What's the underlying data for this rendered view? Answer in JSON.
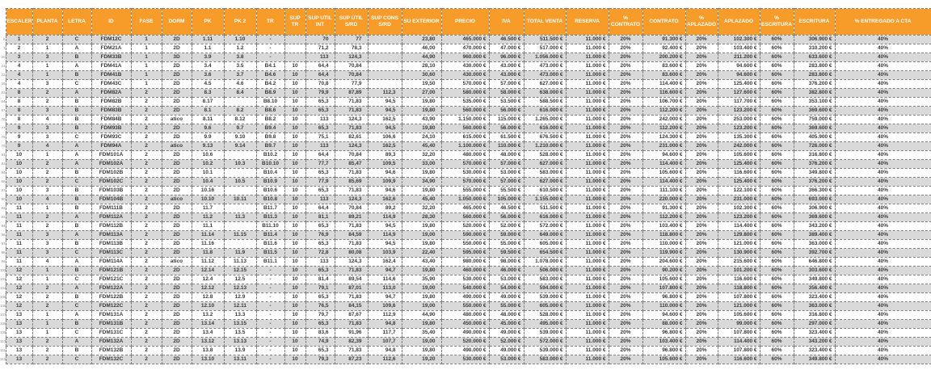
{
  "table": {
    "colors": {
      "header_bg": "#F79C28",
      "header_text": "#FFFFFF",
      "row_alt": "#D9D9D9",
      "border": "#7F7F7F",
      "cell_text": "#3A3A3A",
      "rownum_text": "#8A8A8A"
    },
    "columns": [
      {
        "key": "escalera",
        "label": "ESCALERA"
      },
      {
        "key": "planta",
        "label": "PLANTA"
      },
      {
        "key": "letra",
        "label": "LETRA"
      },
      {
        "key": "id",
        "label": "ID"
      },
      {
        "key": "fase",
        "label": "FASE"
      },
      {
        "key": "dorm",
        "label": "DORM"
      },
      {
        "key": "pk",
        "label": "PK"
      },
      {
        "key": "pk2",
        "label": "PK 2"
      },
      {
        "key": "tr",
        "label": "TR"
      },
      {
        "key": "sup_tr",
        "label": "SUP TR"
      },
      {
        "key": "sup_util_int",
        "label": "SUP UTIL INT"
      },
      {
        "key": "sup_util_srd",
        "label": "SUP ÚTIL S/RD"
      },
      {
        "key": "sup_cons_srd",
        "label": "SUP CONS S/RD"
      },
      {
        "key": "su_exterior",
        "label": "SU EXTERIOR"
      },
      {
        "key": "precio",
        "label": "PRECIO"
      },
      {
        "key": "iva",
        "label": "IVA"
      },
      {
        "key": "total_venta",
        "label": "TOTAL VENTA"
      },
      {
        "key": "reserva",
        "label": "RESERVA"
      },
      {
        "key": "pct_contrato",
        "label": "% CONTRATO"
      },
      {
        "key": "contrato",
        "label": "CONTRATO"
      },
      {
        "key": "pct_aplazado",
        "label": "% APLAZADO"
      },
      {
        "key": "aplazado",
        "label": "APLAZADO"
      },
      {
        "key": "pct_escritura",
        "label": "% ESCRITURA"
      },
      {
        "key": "escritura",
        "label": "ESCRITURA"
      },
      {
        "key": "pct_entregado_cta",
        "label": "% ENTREGADO A CTA"
      }
    ],
    "row_numbers": [
      6,
      7,
      20,
      21,
      22,
      28,
      63,
      64,
      67,
      76,
      77,
      78,
      79,
      81,
      83,
      84,
      86,
      87,
      90,
      92,
      93,
      94,
      96,
      97,
      98,
      99,
      102,
      103,
      104,
      105,
      106,
      107,
      108,
      109,
      110,
      111,
      112
    ],
    "rows": [
      [
        "1",
        "2",
        "C",
        "FDM12C",
        "1",
        "2D",
        "1.11",
        "1.10",
        "-",
        "",
        "70",
        "77",
        "",
        "23,80",
        "465.000 €",
        "46.500 €",
        "511.500 €",
        "11.000 €",
        "20%",
        "91.300 €",
        "20%",
        "102.300 €",
        "60%",
        "306.900 €",
        "40%"
      ],
      [
        "2",
        "1",
        "A",
        "FDM21A",
        "1",
        "2D",
        "1.1",
        "1.2",
        "-",
        "",
        "71,2",
        "78,3",
        "",
        "46,00",
        "470.000 €",
        "47.000 €",
        "517.000 €",
        "11.000 €",
        "20%",
        "92.400 €",
        "20%",
        "103.400 €",
        "60%",
        "310.200 €",
        "40%"
      ],
      [
        "3",
        "3",
        "B",
        "FDM33B",
        "1",
        "3D",
        "3.9",
        "3.8",
        "-",
        "",
        "113",
        "124,3",
        "",
        "44,90",
        "960.000 €",
        "96.000 €",
        "1.056.000 €",
        "11.000 €",
        "20%",
        "200.200 €",
        "20%",
        "211.200 €",
        "60%",
        "633.600 €",
        "40%"
      ],
      [
        "4",
        "1",
        "A",
        "FDM41A",
        "1",
        "2D",
        "3.4",
        "3.5",
        "B4.1",
        "10",
        "64,4",
        "70,84",
        "",
        "28,10",
        "430.000 €",
        "43.000 €",
        "473.000 €",
        "11.000 €",
        "20%",
        "83.600 €",
        "20%",
        "94.600 €",
        "60%",
        "283.800 €",
        "40%"
      ],
      [
        "4",
        "1",
        "B",
        "FDM41B",
        "1",
        "2D",
        "3.6",
        "3.7",
        "B4.6",
        "10",
        "64,4",
        "70,84",
        "",
        "30,60",
        "430.000 €",
        "43.000 €",
        "473.000 €",
        "11.000 €",
        "20%",
        "83.600 €",
        "20%",
        "94.600 €",
        "60%",
        "283.800 €",
        "40%"
      ],
      [
        "4",
        "3",
        "C",
        "FDM43C",
        "1",
        "2D",
        "4.5",
        "4.6",
        "B4.2",
        "10",
        "70,8",
        "77,9",
        "",
        "19,50",
        "570.000 €",
        "57.000 €",
        "627.000 €",
        "11.000 €",
        "20%",
        "114.400 €",
        "20%",
        "125.400 €",
        "60%",
        "376.200 €",
        "40%"
      ],
      [
        "8",
        "2",
        "A",
        "FDM82A",
        "2",
        "2D",
        "8.3",
        "8.4",
        "B8.9",
        "10",
        "79,9",
        "87,89",
        "112,3",
        "27,00",
        "580.000 €",
        "58.000 €",
        "638.000 €",
        "11.000 €",
        "20%",
        "116.600 €",
        "20%",
        "127.600 €",
        "60%",
        "382.800 €",
        "40%"
      ],
      [
        "8",
        "2",
        "B",
        "FDM82B",
        "2",
        "2D",
        "8.17",
        "",
        "B8.10",
        "10",
        "65,3",
        "71,83",
        "94,5",
        "19,80",
        "535.000 €",
        "53.500 €",
        "588.500 €",
        "11.000 €",
        "20%",
        "106.700 €",
        "20%",
        "117.700 €",
        "60%",
        "353.100 €",
        "40%"
      ],
      [
        "8",
        "3",
        "B",
        "FDM83B",
        "2",
        "2D",
        "8.1",
        "8.2",
        "B8.6",
        "10",
        "65,3",
        "71,83",
        "94,5",
        "19,80",
        "560.000 €",
        "56.000 €",
        "616.000 €",
        "11.000 €",
        "20%",
        "112.200 €",
        "20%",
        "123.200 €",
        "60%",
        "369.600 €",
        "40%"
      ],
      [
        "8",
        "4",
        "B",
        "FDM84B",
        "2",
        "atico",
        "8.11",
        "8.12",
        "B8.2",
        "10",
        "113",
        "124,3",
        "162,5",
        "43,90",
        "1.150.000 €",
        "115.000 €",
        "1.265.000 €",
        "11.000 €",
        "20%",
        "242.000 €",
        "20%",
        "253.000 €",
        "60%",
        "759.000 €",
        "40%"
      ],
      [
        "9",
        "3",
        "B",
        "FDM93B",
        "2",
        "2D",
        "9.6",
        "9.7",
        "B9.4",
        "10",
        "65,3",
        "71,83",
        "94,5",
        "19,80",
        "560.000 €",
        "56.000 €",
        "616.000 €",
        "11.000 €",
        "20%",
        "112.200 €",
        "20%",
        "123.200 €",
        "60%",
        "369.600 €",
        "40%"
      ],
      [
        "9",
        "3",
        "C",
        "FDM93C",
        "2",
        "2D",
        "9.9",
        "9.10",
        "B9.8",
        "10",
        "75,1",
        "82,61",
        "106,6",
        "24,10",
        "615.000 €",
        "61.500 €",
        "676.500 €",
        "11.000 €",
        "20%",
        "124.300 €",
        "20%",
        "135.300 €",
        "60%",
        "405.900 €",
        "40%"
      ],
      [
        "9",
        "4",
        "A",
        "FDM94A",
        "2",
        "atico",
        "9.13",
        "9.14",
        "B9.7",
        "10",
        "113",
        "124,3",
        "162,5",
        "45,40",
        "1.100.000 €",
        "110.000 €",
        "1.210.000 €",
        "11.000 €",
        "20%",
        "231.000 €",
        "20%",
        "242.000 €",
        "60%",
        "726.000 €",
        "40%"
      ],
      [
        "10",
        "1",
        "A",
        "FDM101A",
        "2",
        "2D",
        "10.6",
        "",
        "B10.2",
        "10",
        "64,4",
        "70,84",
        "89,3",
        "32,20",
        "480.000 €",
        "48.000 €",
        "528.000 €",
        "11.000 €",
        "20%",
        "94.600 €",
        "20%",
        "105.600 €",
        "60%",
        "316.800 €",
        "40%"
      ],
      [
        "10",
        "2",
        "A",
        "FDM102A",
        "2",
        "2D",
        "10.2",
        "10.3",
        "B10.10",
        "10",
        "77,7",
        "85,47",
        "109,5",
        "33,00",
        "570.000 €",
        "57.000 €",
        "627.000 €",
        "11.000 €",
        "20%",
        "114.400 €",
        "20%",
        "125.400 €",
        "60%",
        "376.200 €",
        "40%"
      ],
      [
        "10",
        "2",
        "B",
        "FDM102B",
        "2",
        "2D",
        "10.1",
        "",
        "B10.4",
        "10",
        "65,3",
        "71,83",
        "94,6",
        "19,80",
        "530.000 €",
        "53.000 €",
        "583.000 €",
        "11.000 €",
        "20%",
        "105.600 €",
        "20%",
        "116.600 €",
        "60%",
        "349.800 €",
        "40%"
      ],
      [
        "10",
        "2",
        "C",
        "FDM102C",
        "2",
        "2D",
        "10.4",
        "10.5",
        "B10.9",
        "10",
        "77,9",
        "85,69",
        "109,9",
        "34,90",
        "570.000 €",
        "57.000 €",
        "627.000 €",
        "11.000 €",
        "20%",
        "114.400 €",
        "20%",
        "125.400 €",
        "60%",
        "376.200 €",
        "40%"
      ],
      [
        "10",
        "3",
        "B",
        "FDM103B",
        "2",
        "2D",
        "10.16",
        "",
        "B10.6",
        "10",
        "65,3",
        "71,83",
        "94,6",
        "19,80",
        "555.000 €",
        "55.500 €",
        "610.500 €",
        "11.000 €",
        "20%",
        "111.100 €",
        "20%",
        "122.100 €",
        "60%",
        "366.300 €",
        "40%"
      ],
      [
        "10",
        "4",
        "B",
        "FDM104B",
        "2",
        "atico",
        "10.10",
        "10.11",
        "B10.8",
        "10",
        "113",
        "124,3",
        "162,6",
        "45,40",
        "1.050.000 €",
        "105.000 €",
        "1.155.000 €",
        "11.000 €",
        "20%",
        "220.000 €",
        "20%",
        "231.000 €",
        "60%",
        "693.000 €",
        "40%"
      ],
      [
        "11",
        "1",
        "B",
        "FDM111B",
        "2",
        "2D",
        "11.7",
        "",
        "B11.7",
        "10",
        "64,4",
        "70,84",
        "89,2",
        "32,20",
        "465.000 €",
        "46.500 €",
        "511.500 €",
        "11.000 €",
        "20%",
        "91.300 €",
        "20%",
        "102.300 €",
        "60%",
        "306.900 €",
        "40%"
      ],
      [
        "11",
        "2",
        "A",
        "FDM112A",
        "2",
        "2D",
        "11.2",
        "11.3",
        "B11.3",
        "10",
        "81,1",
        "89,21",
        "114,9",
        "28,30",
        "560.000 €",
        "56.000 €",
        "616.000 €",
        "11.000 €",
        "20%",
        "112.200 €",
        "20%",
        "123.200 €",
        "60%",
        "369.600 €",
        "40%"
      ],
      [
        "11",
        "2",
        "B",
        "FDM112B",
        "2",
        "2D",
        "11.1",
        "",
        "B11.10",
        "10",
        "65,3",
        "71,83",
        "94,5",
        "19,80",
        "520.000 €",
        "52.000 €",
        "572.000 €",
        "11.000 €",
        "20%",
        "103.400 €",
        "20%",
        "114.400 €",
        "60%",
        "343.200 €",
        "40%"
      ],
      [
        "11",
        "3",
        "A",
        "FDM113A",
        "2",
        "2D",
        "11.14",
        "11.15",
        "B11.4",
        "10",
        "76,9",
        "84,59",
        "114,9",
        "19,00",
        "590.000 €",
        "59.000 €",
        "649.000 €",
        "11.000 €",
        "20%",
        "118.800 €",
        "20%",
        "129.800 €",
        "60%",
        "389.400 €",
        "40%"
      ],
      [
        "11",
        "3",
        "B",
        "FDM113B",
        "2",
        "2D",
        "11.16",
        "",
        "B11.6",
        "10",
        "65,3",
        "71,83",
        "94,5",
        "19,80",
        "550.000 €",
        "55.000 €",
        "605.000 €",
        "11.000 €",
        "20%",
        "110.000 €",
        "20%",
        "121.000 €",
        "60%",
        "363.000 €",
        "40%"
      ],
      [
        "11",
        "3",
        "C",
        "FDM113C",
        "2",
        "2D",
        "11.8",
        "11.9",
        "B11.5",
        "10",
        "72,8",
        "80,08",
        "103,9",
        "22,40",
        "595.000 €",
        "59.500 €",
        "654.500 €",
        "11.000 €",
        "20%",
        "119.900 €",
        "20%",
        "130.900 €",
        "60%",
        "392.700 €",
        "40%"
      ],
      [
        "11",
        "4",
        "A",
        "FDM114A",
        "2",
        "atico",
        "11.12",
        "11.13",
        "B11.1",
        "10",
        "113",
        "124,3",
        "162,4",
        "43,40",
        "980.000 €",
        "98.000 €",
        "1.078.000 €",
        "11.000 €",
        "20%",
        "204.600 €",
        "20%",
        "215.600 €",
        "60%",
        "646.800 €",
        "40%"
      ],
      [
        "12",
        "1",
        "B",
        "FDM121B",
        "2",
        "2D",
        "12.14",
        "12.15",
        "-",
        "10",
        "65,3",
        "71,83",
        "94,7",
        "19,80",
        "460.000 €",
        "46.000 €",
        "506.000 €",
        "11.000 €",
        "20%",
        "90.200 €",
        "20%",
        "101.200 €",
        "60%",
        "303.600 €",
        "40%"
      ],
      [
        "12",
        "1",
        "C",
        "FDM121C",
        "2",
        "2D",
        "12.4",
        "12.5",
        "-",
        "10",
        "81,4",
        "89,54",
        "114,6",
        "35,90",
        "530.000 €",
        "53.000 €",
        "583.000 €",
        "11.000 €",
        "20%",
        "105.600 €",
        "20%",
        "116.600 €",
        "60%",
        "349.800 €",
        "40%"
      ],
      [
        "12",
        "2",
        "A",
        "FDM122A",
        "2",
        "2D",
        "12.12",
        "12.13",
        "-",
        "10",
        "79,1",
        "87,01",
        "113,0",
        "19,00",
        "540.000 €",
        "54.000 €",
        "594.000 €",
        "11.000 €",
        "20%",
        "107.800 €",
        "20%",
        "118.800 €",
        "60%",
        "356.400 €",
        "40%"
      ],
      [
        "12",
        "2",
        "B",
        "FDM122B",
        "2",
        "2D",
        "12.8",
        "12.9",
        "-",
        "10",
        "65,3",
        "71,83",
        "94,7",
        "19,80",
        "490.000 €",
        "49.000 €",
        "539.000 €",
        "11.000 €",
        "20%",
        "96.800 €",
        "20%",
        "107.800 €",
        "60%",
        "323.400 €",
        "40%"
      ],
      [
        "12",
        "2",
        "C",
        "FDM122C",
        "2",
        "2D",
        "12.10",
        "12.11",
        "-",
        "10",
        "76,5",
        "84,15",
        "109,6",
        "19,00",
        "550.000 €",
        "55.000 €",
        "605.000 €",
        "11.000 €",
        "20%",
        "110.000 €",
        "20%",
        "121.000 €",
        "60%",
        "363.000 €",
        "40%"
      ],
      [
        "13",
        "1",
        "A",
        "FDM131A",
        "2",
        "2D",
        "13.2",
        "13.3",
        "-",
        "10",
        "79,7",
        "87,67",
        "112,9",
        "44,90",
        "480.000 €",
        "48.000 €",
        "528.000 €",
        "11.000 €",
        "20%",
        "94.600 €",
        "20%",
        "105.600 €",
        "60%",
        "316.800 €",
        "40%"
      ],
      [
        "13",
        "1",
        "B",
        "FDM131B",
        "2",
        "2D",
        "13.14",
        "13.15",
        "-",
        "10",
        "65,3",
        "71,83",
        "94,8",
        "19,80",
        "450.000 €",
        "45.000 €",
        "495.000 €",
        "11.000 €",
        "20%",
        "88.000 €",
        "20%",
        "99.000 €",
        "60%",
        "297.000 €",
        "40%"
      ],
      [
        "13",
        "1",
        "C",
        "FDM131C",
        "2",
        "2D",
        "13.4",
        "13.5",
        "-",
        "10",
        "83,6",
        "91,96",
        "117,7",
        "35,40",
        "490.000 €",
        "49.000 €",
        "539.000 €",
        "11.000 €",
        "20%",
        "96.800 €",
        "20%",
        "107.800 €",
        "60%",
        "323.400 €",
        "40%"
      ],
      [
        "13",
        "2",
        "A",
        "FDM132A",
        "2",
        "2D",
        "13.12",
        "13.13",
        "-",
        "10",
        "74,9",
        "82,39",
        "107,7",
        "19,00",
        "520.000 €",
        "52.000 €",
        "572.000 €",
        "11.000 €",
        "20%",
        "103.400 €",
        "20%",
        "114.400 €",
        "60%",
        "343.200 €",
        "40%"
      ],
      [
        "13",
        "2",
        "B",
        "FDM132B",
        "2",
        "2D",
        "13.8",
        "13.9",
        "-",
        "10",
        "65,3",
        "71,83",
        "94,8",
        "19,80",
        "490.000 €",
        "49.000 €",
        "539.000 €",
        "11.000 €",
        "20%",
        "96.800 €",
        "20%",
        "107.800 €",
        "60%",
        "323.400 €",
        "40%"
      ],
      [
        "13",
        "2",
        "C",
        "FDM132C",
        "2",
        "2D",
        "13.10",
        "13.11",
        "-",
        "10",
        "79,3",
        "87,23",
        "112,6",
        "19,20",
        "530.000 €",
        "53.000 €",
        "583.000 €",
        "11.000 €",
        "20%",
        "105.600 €",
        "20%",
        "116.600 €",
        "60%",
        "349.800 €",
        "40%"
      ]
    ]
  }
}
